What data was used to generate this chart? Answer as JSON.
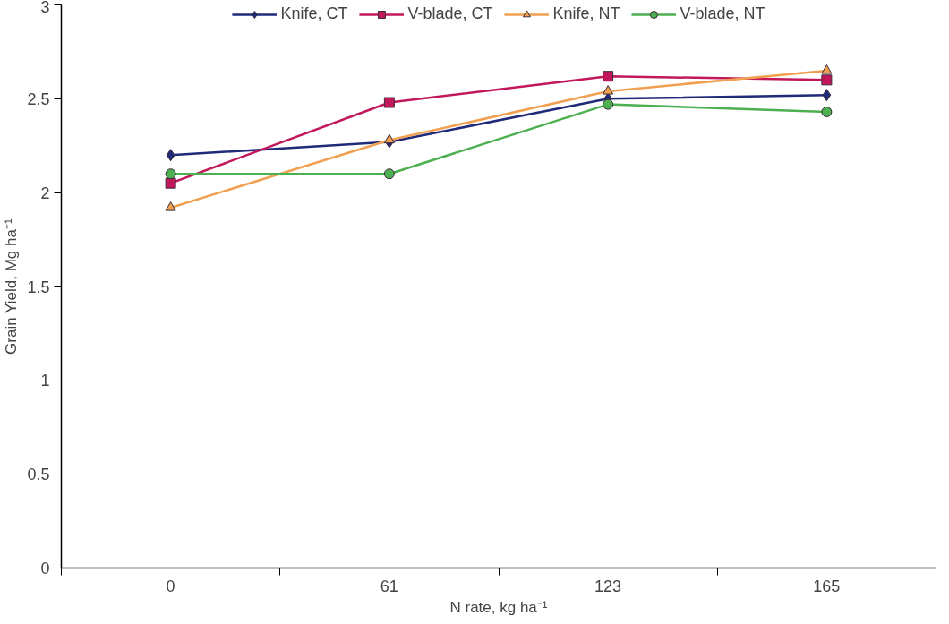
{
  "chart_data": {
    "type": "line",
    "xlabel": "N rate, kg ha⁻¹",
    "ylabel": "Grain Yield, Mg ha⁻¹",
    "categories": [
      "0",
      "61",
      "123",
      "165"
    ],
    "ylim": [
      0,
      3
    ],
    "yticks": [
      0,
      0.5,
      1,
      1.5,
      2,
      2.5,
      3
    ],
    "grid": false,
    "legend": "top",
    "series": [
      {
        "name": "Knife, CT",
        "color": "#1f2a78",
        "marker": "diamond",
        "values": [
          2.2,
          2.27,
          2.5,
          2.52
        ]
      },
      {
        "name": "V-blade, CT",
        "color": "#c2185b",
        "marker": "square",
        "values": [
          2.05,
          2.48,
          2.62,
          2.6
        ]
      },
      {
        "name": "Knife, NT",
        "color": "#f0a050",
        "marker": "triangle",
        "values": [
          1.92,
          2.28,
          2.54,
          2.65
        ]
      },
      {
        "name": "V-blade, NT",
        "color": "#4caf50",
        "marker": "circle",
        "values": [
          2.1,
          2.1,
          2.47,
          2.43
        ]
      }
    ]
  }
}
